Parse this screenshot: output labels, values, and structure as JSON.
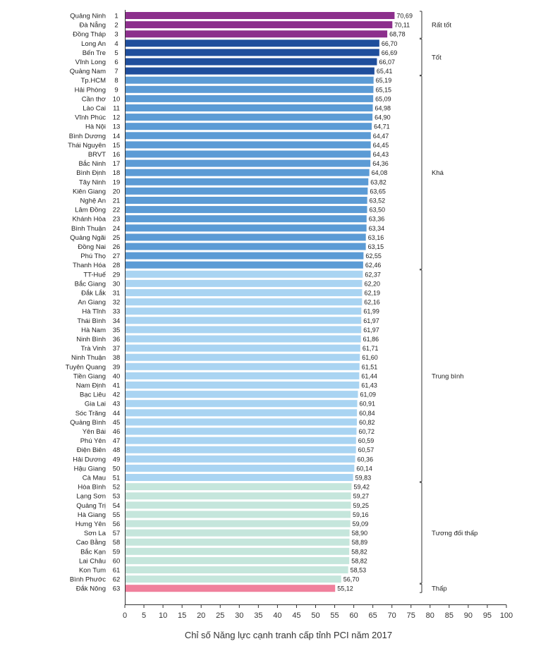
{
  "chart_data": {
    "type": "bar",
    "orientation": "horizontal",
    "xlabel": "Chỉ số Năng lực cạnh tranh cấp tỉnh PCI năm 2017",
    "xlim": [
      0,
      100
    ],
    "xticks": [
      0,
      5,
      10,
      15,
      20,
      25,
      30,
      35,
      40,
      45,
      50,
      55,
      60,
      65,
      70,
      75,
      80,
      85,
      90,
      95,
      100
    ],
    "grid": false,
    "groups": [
      {
        "label": "Rất tốt",
        "from_rank": 1,
        "to_rank": 3,
        "color": "#8c2f8c"
      },
      {
        "label": "Tốt",
        "from_rank": 4,
        "to_rank": 7,
        "color": "#1f4e9c"
      },
      {
        "label": "Khá",
        "from_rank": 8,
        "to_rank": 28,
        "color": "#5b9bd5"
      },
      {
        "label": "Trung bình",
        "from_rank": 29,
        "to_rank": 51,
        "color": "#a9d4f2"
      },
      {
        "label": "Tương đối thấp",
        "from_rank": 52,
        "to_rank": 62,
        "color": "#c5e6dc"
      },
      {
        "label": "Thấp",
        "from_rank": 63,
        "to_rank": 63,
        "color": "#f0809c"
      }
    ],
    "bars": [
      {
        "province": "Quảng Ninh",
        "rank": "1",
        "value": 70.69,
        "label": "70,69"
      },
      {
        "province": "Đà Nẵng",
        "rank": "2",
        "value": 70.11,
        "label": "70,11"
      },
      {
        "province": "Đồng Tháp",
        "rank": "3",
        "value": 68.78,
        "label": "68,78"
      },
      {
        "province": "Long An",
        "rank": "4",
        "value": 66.7,
        "label": "66,70"
      },
      {
        "province": "Bến Tre",
        "rank": "5",
        "value": 66.69,
        "label": "66,69"
      },
      {
        "province": "Vĩnh Long",
        "rank": "6",
        "value": 66.07,
        "label": "66,07"
      },
      {
        "province": "Quảng Nam",
        "rank": "7",
        "value": 65.41,
        "label": "65,41"
      },
      {
        "province": "Tp.HCM",
        "rank": "8",
        "value": 65.19,
        "label": "65,19"
      },
      {
        "province": "Hải Phòng",
        "rank": "9",
        "value": 65.15,
        "label": "65,15"
      },
      {
        "province": "Cần thơ",
        "rank": "10",
        "value": 65.09,
        "label": "65,09"
      },
      {
        "province": "Lào Cai",
        "rank": "11",
        "value": 64.98,
        "label": "64,98"
      },
      {
        "province": "Vĩnh Phúc",
        "rank": "12",
        "value": 64.9,
        "label": "64,90"
      },
      {
        "province": "Hà Nội",
        "rank": "13",
        "value": 64.71,
        "label": "64,71"
      },
      {
        "province": "Bình Dương",
        "rank": "14",
        "value": 64.47,
        "label": "64,47"
      },
      {
        "province": "Thái Nguyên",
        "rank": "15",
        "value": 64.45,
        "label": "64,45"
      },
      {
        "province": "BRVT",
        "rank": "16",
        "value": 64.43,
        "label": "64,43"
      },
      {
        "province": "Bắc Ninh",
        "rank": "17",
        "value": 64.36,
        "label": "64,36"
      },
      {
        "province": "Bình Định",
        "rank": "18",
        "value": 64.08,
        "label": "64,08"
      },
      {
        "province": "Tây Ninh",
        "rank": "19",
        "value": 63.82,
        "label": "63,82"
      },
      {
        "province": "Kiên Giang",
        "rank": "20",
        "value": 63.65,
        "label": "63,65"
      },
      {
        "province": "Nghệ An",
        "rank": "21",
        "value": 63.52,
        "label": "63,52"
      },
      {
        "province": "Lâm Đồng",
        "rank": "22",
        "value": 63.5,
        "label": "63,50"
      },
      {
        "province": "Khánh Hòa",
        "rank": "23",
        "value": 63.36,
        "label": "63,36"
      },
      {
        "province": "Bình Thuận",
        "rank": "24",
        "value": 63.34,
        "label": "63,34"
      },
      {
        "province": "Quảng Ngãi",
        "rank": "25",
        "value": 63.16,
        "label": "63,16"
      },
      {
        "province": "Đồng Nai",
        "rank": "26",
        "value": 63.15,
        "label": "63,15"
      },
      {
        "province": "Phú Thọ",
        "rank": "27",
        "value": 62.55,
        "label": "62,55"
      },
      {
        "province": "Thanh Hóa",
        "rank": "28",
        "value": 62.46,
        "label": "62,46"
      },
      {
        "province": "TT-Huế",
        "rank": "29",
        "value": 62.37,
        "label": "62,37"
      },
      {
        "province": "Bắc Giang",
        "rank": "30",
        "value": 62.2,
        "label": "62,20"
      },
      {
        "province": "Đắk Lắk",
        "rank": "31",
        "value": 62.19,
        "label": "62,19"
      },
      {
        "province": "An Giang",
        "rank": "32",
        "value": 62.16,
        "label": "62,16"
      },
      {
        "province": "Hà Tĩnh",
        "rank": "33",
        "value": 61.99,
        "label": "61,99"
      },
      {
        "province": "Thái Bình",
        "rank": "34",
        "value": 61.97,
        "label": "61,97"
      },
      {
        "province": "Hà Nam",
        "rank": "35",
        "value": 61.97,
        "label": "61,97"
      },
      {
        "province": "Ninh Bình",
        "rank": "36",
        "value": 61.86,
        "label": "61,86"
      },
      {
        "province": "Trà Vinh",
        "rank": "37",
        "value": 61.71,
        "label": "61,71"
      },
      {
        "province": "Ninh Thuận",
        "rank": "38",
        "value": 61.6,
        "label": "61,60"
      },
      {
        "province": "Tuyên Quang",
        "rank": "39",
        "value": 61.51,
        "label": "61,51"
      },
      {
        "province": "Tiền Giang",
        "rank": "40",
        "value": 61.44,
        "label": "61,44"
      },
      {
        "province": "Nam Định",
        "rank": "41",
        "value": 61.43,
        "label": "61,43"
      },
      {
        "province": "Bạc Liêu",
        "rank": "42",
        "value": 61.09,
        "label": "61,09"
      },
      {
        "province": "Gia Lai",
        "rank": "43",
        "value": 60.91,
        "label": "60,91"
      },
      {
        "province": "Sóc Trăng",
        "rank": "44",
        "value": 60.84,
        "label": "60,84"
      },
      {
        "province": "Quảng Bình",
        "rank": "45",
        "value": 60.82,
        "label": "60,82"
      },
      {
        "province": "Yên Bái",
        "rank": "46",
        "value": 60.72,
        "label": "60,72"
      },
      {
        "province": "Phú Yên",
        "rank": "47",
        "value": 60.59,
        "label": "60,59"
      },
      {
        "province": "Điện Biên",
        "rank": "48",
        "value": 60.57,
        "label": "60,57"
      },
      {
        "province": "Hải Dương",
        "rank": "49",
        "value": 60.36,
        "label": "60,36"
      },
      {
        "province": "Hậu Giang",
        "rank": "50",
        "value": 60.14,
        "label": "60,14"
      },
      {
        "province": "Cà Mau",
        "rank": "51",
        "value": 59.83,
        "label": "59,83"
      },
      {
        "province": "Hòa Bình",
        "rank": "52",
        "value": 59.42,
        "label": "59,42"
      },
      {
        "province": "Lạng Sơn",
        "rank": "53",
        "value": 59.27,
        "label": "59,27"
      },
      {
        "province": "Quảng Trị",
        "rank": "54",
        "value": 59.25,
        "label": "59,25"
      },
      {
        "province": "Hà Giang",
        "rank": "55",
        "value": 59.16,
        "label": "59,16"
      },
      {
        "province": "Hưng Yên",
        "rank": "56",
        "value": 59.09,
        "label": "59,09"
      },
      {
        "province": "Sơn La",
        "rank": "57",
        "value": 58.9,
        "label": "58,90"
      },
      {
        "province": "Cao Bằng",
        "rank": "58",
        "value": 58.89,
        "label": "58,89"
      },
      {
        "province": "Bắc Kạn",
        "rank": "59",
        "value": 58.82,
        "label": "58,82"
      },
      {
        "province": "Lai Châu",
        "rank": "60",
        "value": 58.82,
        "label": "58,82"
      },
      {
        "province": "Kon Tum",
        "rank": "61",
        "value": 58.53,
        "label": "58,53"
      },
      {
        "province": "Bình Phước",
        "rank": "62",
        "value": 56.7,
        "label": "56,70"
      },
      {
        "province": "Đắk Nông",
        "rank": "63",
        "value": 55.12,
        "label": "55,12"
      }
    ]
  }
}
